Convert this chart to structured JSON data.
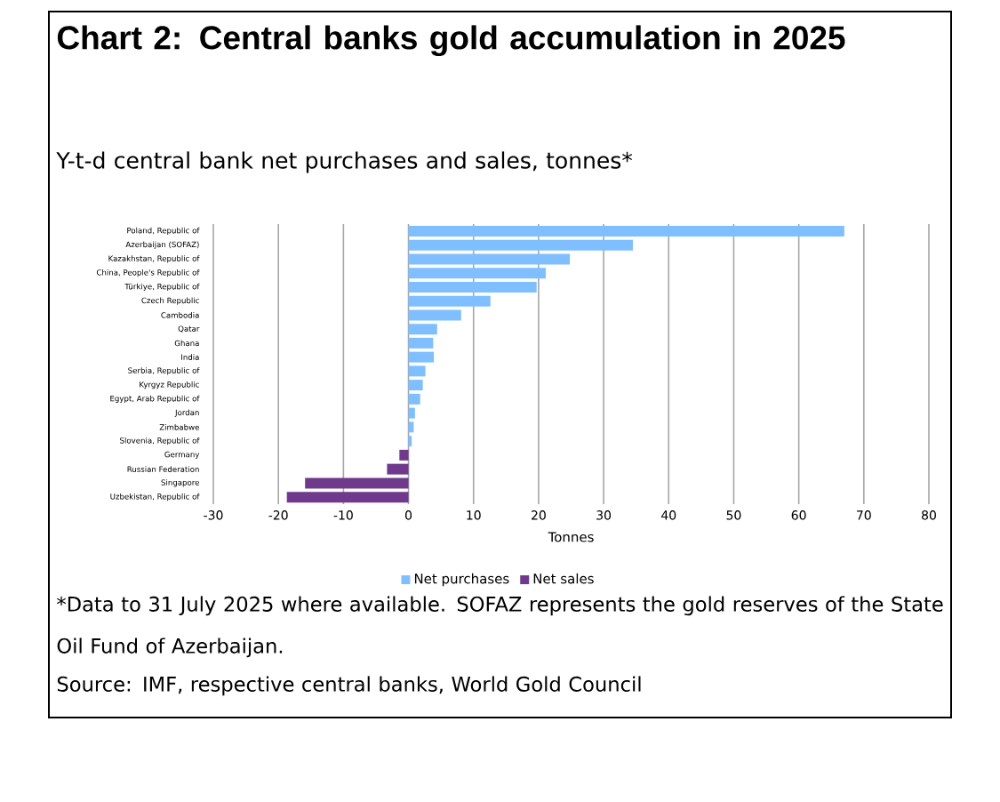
{
  "chart_data": {
    "type": "bar",
    "orientation": "horizontal",
    "title": "Chart 2: Central banks gold accumulation in 2025",
    "subtitle": "Y-t-d central bank net purchases and sales, tonnes*",
    "xlabel": "Tonnes",
    "categories": [
      "Poland, Republic of",
      "Azerbaijan (SOFAZ)",
      "Kazakhstan, Republic of",
      "China, People's Republic of",
      "Türkiye, Republic of",
      "Czech Republic",
      "Cambodia",
      "Qatar",
      "Ghana",
      "India",
      "Serbia, Republic of",
      "Kyrgyz Republic",
      "Egypt, Arab Republic of",
      "Jordan",
      "Zimbabwe",
      "Slovenia, Republic of",
      "Germany",
      "Russian Federation",
      "Singapore",
      "Uzbekistan, Republic of"
    ],
    "series": [
      {
        "name": "Net purchases",
        "color": "#7fbfff",
        "values": [
          67.0,
          34.5,
          24.8,
          21.1,
          19.7,
          12.6,
          8.1,
          4.4,
          3.8,
          3.9,
          2.6,
          2.2,
          1.8,
          1.0,
          0.8,
          0.5,
          null,
          null,
          null,
          null
        ]
      },
      {
        "name": "Net sales",
        "color": "#6f3a8c",
        "values": [
          null,
          null,
          null,
          null,
          null,
          null,
          null,
          null,
          null,
          null,
          null,
          null,
          null,
          null,
          null,
          null,
          -1.4,
          -3.3,
          -15.9,
          -18.7
        ]
      }
    ],
    "xlim": [
      -30,
      80
    ],
    "xticks": [
      -30,
      -20,
      -10,
      0,
      10,
      20,
      30,
      40,
      50,
      60,
      70,
      80
    ],
    "grid": "x",
    "legend": "bottom",
    "annotations": [
      "*Data to 31 July 2025 where available. SOFAZ represents the gold reserves of the State Oil Fund of Azerbaijan.",
      "Source: IMF, respective central banks, World Gold Council"
    ]
  }
}
